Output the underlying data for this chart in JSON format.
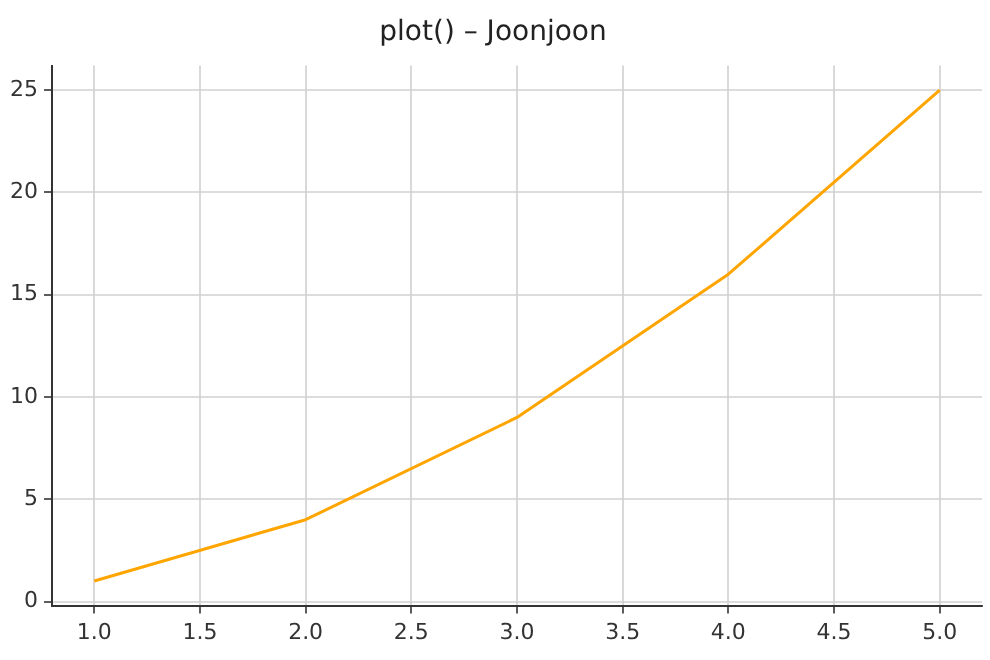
{
  "chart_data": {
    "type": "line",
    "title": "plot() – Joonjoon",
    "x": [
      1,
      2,
      3,
      4,
      5
    ],
    "series": [
      {
        "color": "#ffa500",
        "values": [
          1,
          4,
          9,
          16,
          25
        ]
      }
    ],
    "xlim": [
      0.8,
      5.2
    ],
    "ylim": [
      -0.2,
      26.2
    ],
    "xticks": [
      {
        "value": 1,
        "label": "1.0"
      },
      {
        "value": 1.5,
        "label": "1.5"
      },
      {
        "value": 2,
        "label": "2.0"
      },
      {
        "value": 2.5,
        "label": "2.5"
      },
      {
        "value": 3,
        "label": "3.0"
      },
      {
        "value": 3.5,
        "label": "3.5"
      },
      {
        "value": 4,
        "label": "4.0"
      },
      {
        "value": 4.5,
        "label": "4.5"
      },
      {
        "value": 5,
        "label": "5.0"
      }
    ],
    "yticks": [
      0,
      5,
      10,
      15,
      20,
      25
    ],
    "grid": true,
    "legend": false,
    "marker": "none",
    "line_style": "solid"
  }
}
